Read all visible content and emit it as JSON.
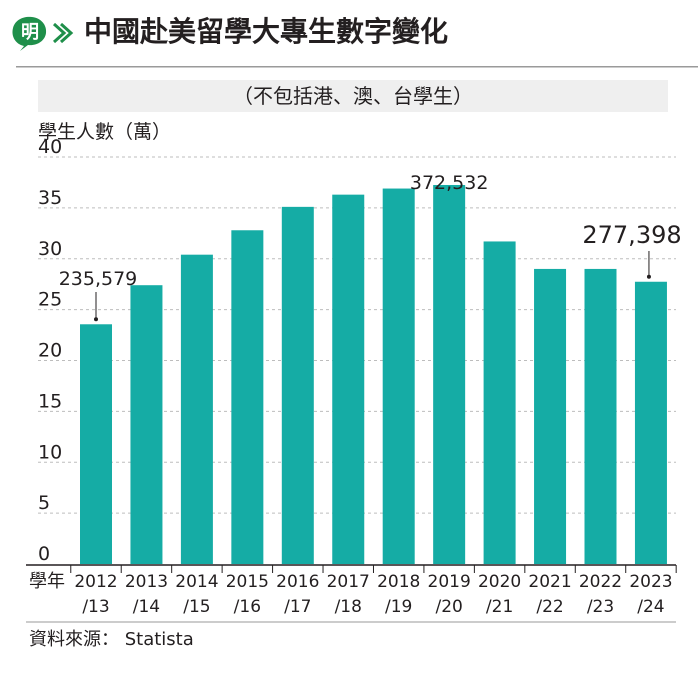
{
  "header": {
    "logo_char": "明",
    "title": "中國赴美留學大專生數字變化",
    "subtitle": "（不包括港、澳、台學生）"
  },
  "colors": {
    "bar": "#15aca5",
    "logo_green": "#1f8f4a",
    "header_rule": "#9a9a9a",
    "subtitle_bg": "#efefef",
    "grid": "#bdbdbd",
    "text": "#231f20"
  },
  "chart_data": {
    "type": "bar",
    "ylabel": "學生人數（萬）",
    "xlabel": "學年",
    "ylim": [
      0,
      40
    ],
    "yticks": [
      0,
      5,
      10,
      15,
      20,
      25,
      30,
      35,
      40
    ],
    "grid": "horizontal dashed",
    "categories": [
      [
        "2012",
        "/13"
      ],
      [
        "2013",
        "/14"
      ],
      [
        "2014",
        "/15"
      ],
      [
        "2015",
        "/16"
      ],
      [
        "2016",
        "/17"
      ],
      [
        "2017",
        "/18"
      ],
      [
        "2018",
        "/19"
      ],
      [
        "2019",
        "/20"
      ],
      [
        "2020",
        "/21"
      ],
      [
        "2021",
        "/22"
      ],
      [
        "2022",
        "/23"
      ],
      [
        "2023",
        "/24"
      ]
    ],
    "values": [
      23.56,
      27.4,
      30.4,
      32.8,
      35.1,
      36.3,
      36.9,
      37.25,
      31.7,
      29.0,
      29.0,
      27.74
    ],
    "annotations": [
      {
        "index": 0,
        "label": "235,579"
      },
      {
        "index": 7,
        "label": "372,532"
      },
      {
        "index": 11,
        "label": "277,398"
      }
    ]
  },
  "footer": {
    "source": "資料來源： Statista"
  }
}
